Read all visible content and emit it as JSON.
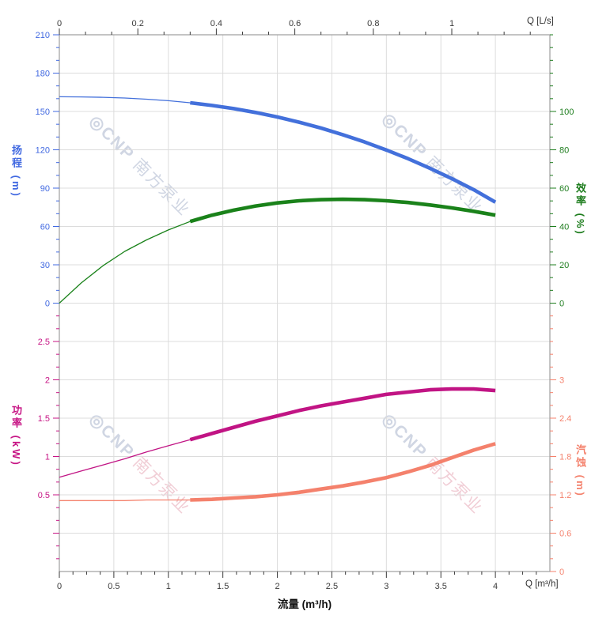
{
  "watermark": {
    "logo": "◎",
    "brand": "CNP ",
    "cn": "南方泵业"
  },
  "colors": {
    "head": "#4370db",
    "head_label": "#4169e1",
    "efficiency": "#1a821a",
    "efficiency_label": "#1e7d1e",
    "power": "#c11484",
    "power_label": "#c71585",
    "npsh": "#f4816c",
    "npsh_label": "#f4816c",
    "grid": "#dcdcdc",
    "axis": "#9e9e9e",
    "tick_dark": "#3a3a3a",
    "wm_blue": "#d0d6e3",
    "wm_pink": "#f1ced6"
  },
  "axes": {
    "top": {
      "unit_label": "Q [L/s]",
      "tick_labels": [
        "0",
        "0.2",
        "0.4",
        "0.6",
        "0.8",
        "1"
      ],
      "range_Ls": [
        0,
        1.25
      ]
    },
    "bottom": {
      "unit_label": "Q [m³/h]",
      "title": "流量 (m³/h)",
      "tick_labels": [
        "0",
        "0.5",
        "1",
        "1.5",
        "2",
        "2.5",
        "3",
        "3.5",
        "4"
      ],
      "range_m3h": [
        0,
        4.5
      ]
    },
    "head": {
      "title": "扬程 (m)",
      "tick_labels": [
        "210",
        "180",
        "150",
        "120",
        "90",
        "60",
        "30",
        "0"
      ],
      "range": [
        0,
        210
      ]
    },
    "efficiency": {
      "title": "效率 (%)",
      "tick_labels": [
        "100",
        "80",
        "60",
        "40",
        "20",
        "0"
      ],
      "range": [
        0,
        100
      ]
    },
    "power": {
      "title": "功率 (kW)",
      "tick_labels": [
        "2.5",
        "2",
        "1.5",
        "1",
        "0.5"
      ],
      "range": [
        0,
        2.9
      ]
    },
    "npsh": {
      "title": "汽蚀 (m)",
      "tick_labels": [
        "3",
        "2.4",
        "1.8",
        "1.2",
        "0.6",
        "0"
      ],
      "range": [
        0,
        3.6
      ]
    }
  },
  "chart_data": [
    {
      "type": "line",
      "title": "Pump head and efficiency vs flow",
      "xlabel": "流量 (m³/h)",
      "x_start": 0,
      "x_step": 0.2,
      "x_range": [
        0,
        4.5
      ],
      "grid": true,
      "thin_below_q": 1.2,
      "series": [
        {
          "name": "扬程",
          "axis_key": "head",
          "units": "m",
          "color_key": "head",
          "values": [
            161.5,
            161.4,
            161.1,
            160.5,
            159.6,
            158.4,
            156.8,
            154.7,
            152.2,
            149.2,
            145.7,
            141.6,
            137.0,
            131.8,
            126.1,
            119.8,
            113.0,
            105.5,
            97.5,
            88.8,
            79.0
          ]
        },
        {
          "name": "效率",
          "axis_key": "efficiency",
          "units": "%",
          "color_key": "efficiency",
          "values": [
            0,
            10.5,
            19.5,
            27.0,
            33.0,
            38.2,
            42.6,
            45.9,
            48.5,
            50.7,
            52.3,
            53.4,
            54.0,
            54.2,
            54.0,
            53.4,
            52.5,
            51.2,
            49.7,
            47.9,
            45.9
          ]
        }
      ]
    },
    {
      "type": "line",
      "title": "Pump power and NPSH vs flow",
      "xlabel": "流量 (m³/h)",
      "x_start": 0,
      "x_step": 0.2,
      "x_range": [
        0,
        4.5
      ],
      "grid": true,
      "thin_below_q": 1.2,
      "series": [
        {
          "name": "功率",
          "axis_key": "power",
          "units": "kW",
          "color_key": "power",
          "values": [
            0.73,
            0.81,
            0.89,
            0.97,
            1.06,
            1.14,
            1.22,
            1.3,
            1.38,
            1.46,
            1.53,
            1.6,
            1.66,
            1.71,
            1.76,
            1.81,
            1.84,
            1.87,
            1.88,
            1.88,
            1.86
          ]
        },
        {
          "name": "汽蚀",
          "axis_key": "npsh",
          "units": "m",
          "color_key": "npsh",
          "values": [
            1.11,
            1.11,
            1.11,
            1.11,
            1.12,
            1.12,
            1.12,
            1.13,
            1.15,
            1.17,
            1.2,
            1.24,
            1.29,
            1.34,
            1.4,
            1.47,
            1.56,
            1.66,
            1.78,
            1.9,
            2.0
          ]
        }
      ]
    }
  ]
}
